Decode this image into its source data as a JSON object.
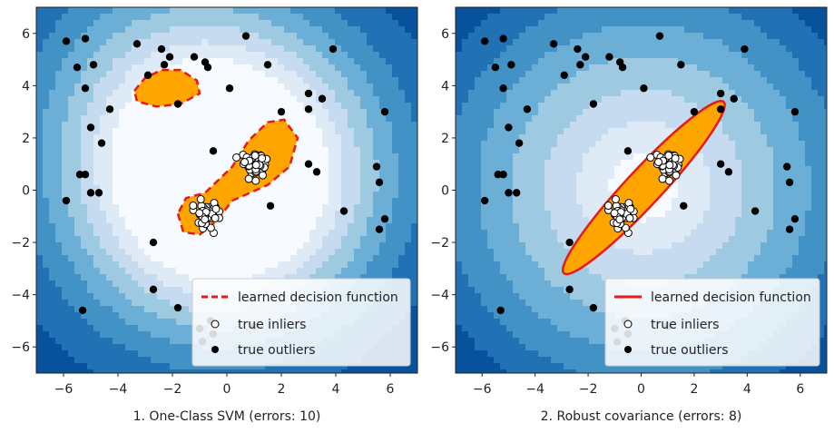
{
  "chart_data": [
    {
      "type": "scatter",
      "xlabel": "1. One-Class SVM (errors: 10)",
      "xlim": [
        -7,
        7
      ],
      "ylim": [
        -7,
        7
      ],
      "xticks": [
        -6,
        -4,
        -2,
        0,
        2,
        4,
        6
      ],
      "yticks": [
        -6,
        -4,
        -2,
        0,
        2,
        4,
        6
      ],
      "grid": false,
      "legend_position": "bottom-right",
      "legend": [
        {
          "label": "learned decision function",
          "style": "dashed-line",
          "color": "#e41a1c"
        },
        {
          "label": "true inliers",
          "style": "hollow-circle",
          "color": "#ffffff"
        },
        {
          "label": "true outliers",
          "style": "filled-circle",
          "color": "#000000"
        }
      ],
      "colors": {
        "background_dark": "#08519c",
        "background_light": "#f7fbff",
        "inlier_region": "#ffa500",
        "boundary": "#e41a1c"
      },
      "outliers": [
        [
          -5.9,
          5.7
        ],
        [
          -5.5,
          4.7
        ],
        [
          -5.2,
          5.8
        ],
        [
          -4.9,
          4.8
        ],
        [
          -3.3,
          5.6
        ],
        [
          -2.4,
          5.4
        ],
        [
          -2.3,
          4.8
        ],
        [
          -2.1,
          5.1
        ],
        [
          -2.9,
          4.4
        ],
        [
          -1.2,
          5.1
        ],
        [
          -0.8,
          4.9
        ],
        [
          -0.7,
          4.7
        ],
        [
          0.7,
          5.9
        ],
        [
          1.5,
          4.8
        ],
        [
          0.1,
          3.9
        ],
        [
          -1.8,
          3.3
        ],
        [
          -4.3,
          3.1
        ],
        [
          -5.2,
          3.9
        ],
        [
          -5.0,
          2.4
        ],
        [
          -4.6,
          1.8
        ],
        [
          -0.5,
          1.5
        ],
        [
          3.0,
          3.7
        ],
        [
          3.5,
          3.5
        ],
        [
          3.0,
          3.1
        ],
        [
          3.9,
          5.4
        ],
        [
          2.0,
          3.0
        ],
        [
          -5.4,
          0.6
        ],
        [
          -5.2,
          0.6
        ],
        [
          -5.0,
          -0.1
        ],
        [
          -4.7,
          -0.1
        ],
        [
          -5.9,
          -0.4
        ],
        [
          5.5,
          0.9
        ],
        [
          5.6,
          0.3
        ],
        [
          3.0,
          1.0
        ],
        [
          3.3,
          0.7
        ],
        [
          5.8,
          3.0
        ],
        [
          1.6,
          -0.6
        ],
        [
          4.3,
          -0.8
        ],
        [
          5.8,
          -1.1
        ],
        [
          5.6,
          -1.5
        ],
        [
          -2.7,
          -2.0
        ],
        [
          -2.7,
          -3.8
        ],
        [
          -1.8,
          -4.5
        ],
        [
          -1.0,
          -5.3
        ],
        [
          -0.6,
          -5.0
        ],
        [
          -0.9,
          -5.8
        ],
        [
          -0.5,
          -5.5
        ],
        [
          -5.3,
          -4.6
        ],
        [
          1.0,
          -5.2
        ]
      ],
      "inlier_clusters": [
        {
          "center": [
            -0.8,
            -0.9
          ],
          "count": 40,
          "spread": 0.55
        },
        {
          "center": [
            1.0,
            1.0
          ],
          "count": 40,
          "spread": 0.55
        }
      ],
      "boundaries": [
        {
          "polygon": [
            [
              -3.4,
              3.8
            ],
            [
              -3.0,
              4.3
            ],
            [
              -2.4,
              4.6
            ],
            [
              -1.7,
              4.6
            ],
            [
              -1.1,
              4.2
            ],
            [
              -1.0,
              3.7
            ],
            [
              -1.7,
              3.3
            ],
            [
              -2.6,
              3.2
            ],
            [
              -3.3,
              3.4
            ]
          ]
        },
        {
          "polygon": [
            [
              -1.8,
              -0.9
            ],
            [
              -1.6,
              -1.6
            ],
            [
              -1.0,
              -1.7
            ],
            [
              -0.4,
              -1.2
            ],
            [
              0.2,
              -0.4
            ],
            [
              1.5,
              0.2
            ],
            [
              2.3,
              0.9
            ],
            [
              2.6,
              2.0
            ],
            [
              2.1,
              2.7
            ],
            [
              1.5,
              2.6
            ],
            [
              0.8,
              1.9
            ],
            [
              0.2,
              0.9
            ],
            [
              -0.8,
              -0.1
            ],
            [
              -1.5,
              -0.3
            ]
          ]
        }
      ],
      "field": {
        "type": "svm",
        "centers": [
          [
            -0.8,
            -0.9
          ],
          [
            1.0,
            1.0
          ],
          [
            -2.2,
            3.9
          ]
        ]
      }
    },
    {
      "type": "scatter",
      "xlabel": "2. Robust covariance (errors: 8)",
      "xlim": [
        -7,
        7
      ],
      "ylim": [
        -7,
        7
      ],
      "xticks": [
        -6,
        -4,
        -2,
        0,
        2,
        4,
        6
      ],
      "yticks": [
        -6,
        -4,
        -2,
        0,
        2,
        4,
        6
      ],
      "grid": false,
      "legend_position": "bottom-right",
      "legend": [
        {
          "label": "learned decision function",
          "style": "solid-line",
          "color": "#e41a1c"
        },
        {
          "label": "true inliers",
          "style": "hollow-circle",
          "color": "#ffffff"
        },
        {
          "label": "true outliers",
          "style": "filled-circle",
          "color": "#000000"
        }
      ],
      "colors": {
        "background_dark": "#08519c",
        "background_light": "#f7fbff",
        "inlier_region": "#ffa500",
        "boundary": "#e41a1c"
      },
      "outliers": [
        [
          -5.9,
          5.7
        ],
        [
          -5.5,
          4.7
        ],
        [
          -5.2,
          5.8
        ],
        [
          -4.9,
          4.8
        ],
        [
          -3.3,
          5.6
        ],
        [
          -2.4,
          5.4
        ],
        [
          -2.3,
          4.8
        ],
        [
          -2.1,
          5.1
        ],
        [
          -2.9,
          4.4
        ],
        [
          -1.2,
          5.1
        ],
        [
          -0.8,
          4.9
        ],
        [
          -0.7,
          4.7
        ],
        [
          0.7,
          5.9
        ],
        [
          1.5,
          4.8
        ],
        [
          0.1,
          3.9
        ],
        [
          -1.8,
          3.3
        ],
        [
          -4.3,
          3.1
        ],
        [
          -5.2,
          3.9
        ],
        [
          -5.0,
          2.4
        ],
        [
          -4.6,
          1.8
        ],
        [
          -0.5,
          1.5
        ],
        [
          3.0,
          3.7
        ],
        [
          3.5,
          3.5
        ],
        [
          3.0,
          3.1
        ],
        [
          3.9,
          5.4
        ],
        [
          2.0,
          3.0
        ],
        [
          -5.4,
          0.6
        ],
        [
          -5.2,
          0.6
        ],
        [
          -5.0,
          -0.1
        ],
        [
          -4.7,
          -0.1
        ],
        [
          -5.9,
          -0.4
        ],
        [
          5.5,
          0.9
        ],
        [
          5.6,
          0.3
        ],
        [
          3.0,
          1.0
        ],
        [
          3.3,
          0.7
        ],
        [
          5.8,
          3.0
        ],
        [
          1.6,
          -0.6
        ],
        [
          4.3,
          -0.8
        ],
        [
          5.8,
          -1.1
        ],
        [
          5.6,
          -1.5
        ],
        [
          -2.7,
          -2.0
        ],
        [
          -2.7,
          -3.8
        ],
        [
          -1.8,
          -4.5
        ],
        [
          -1.0,
          -5.3
        ],
        [
          -0.6,
          -5.0
        ],
        [
          -0.9,
          -5.8
        ],
        [
          -0.5,
          -5.5
        ],
        [
          -5.3,
          -4.6
        ],
        [
          1.0,
          -5.2
        ]
      ],
      "inlier_clusters": [
        {
          "center": [
            -0.8,
            -0.9
          ],
          "count": 40,
          "spread": 0.55
        },
        {
          "center": [
            1.0,
            1.0
          ],
          "count": 40,
          "spread": 0.55
        }
      ],
      "boundaries": [
        {
          "ellipse": {
            "center": [
              0.1,
              0.1
            ],
            "semi_major": 4.45,
            "semi_minor": 0.68,
            "angle_deg": 47
          }
        }
      ],
      "field": {
        "type": "mahalanobis",
        "center": [
          0.1,
          0.1
        ],
        "angle_deg": 47,
        "scale": [
          1.0,
          0.25
        ]
      }
    }
  ]
}
